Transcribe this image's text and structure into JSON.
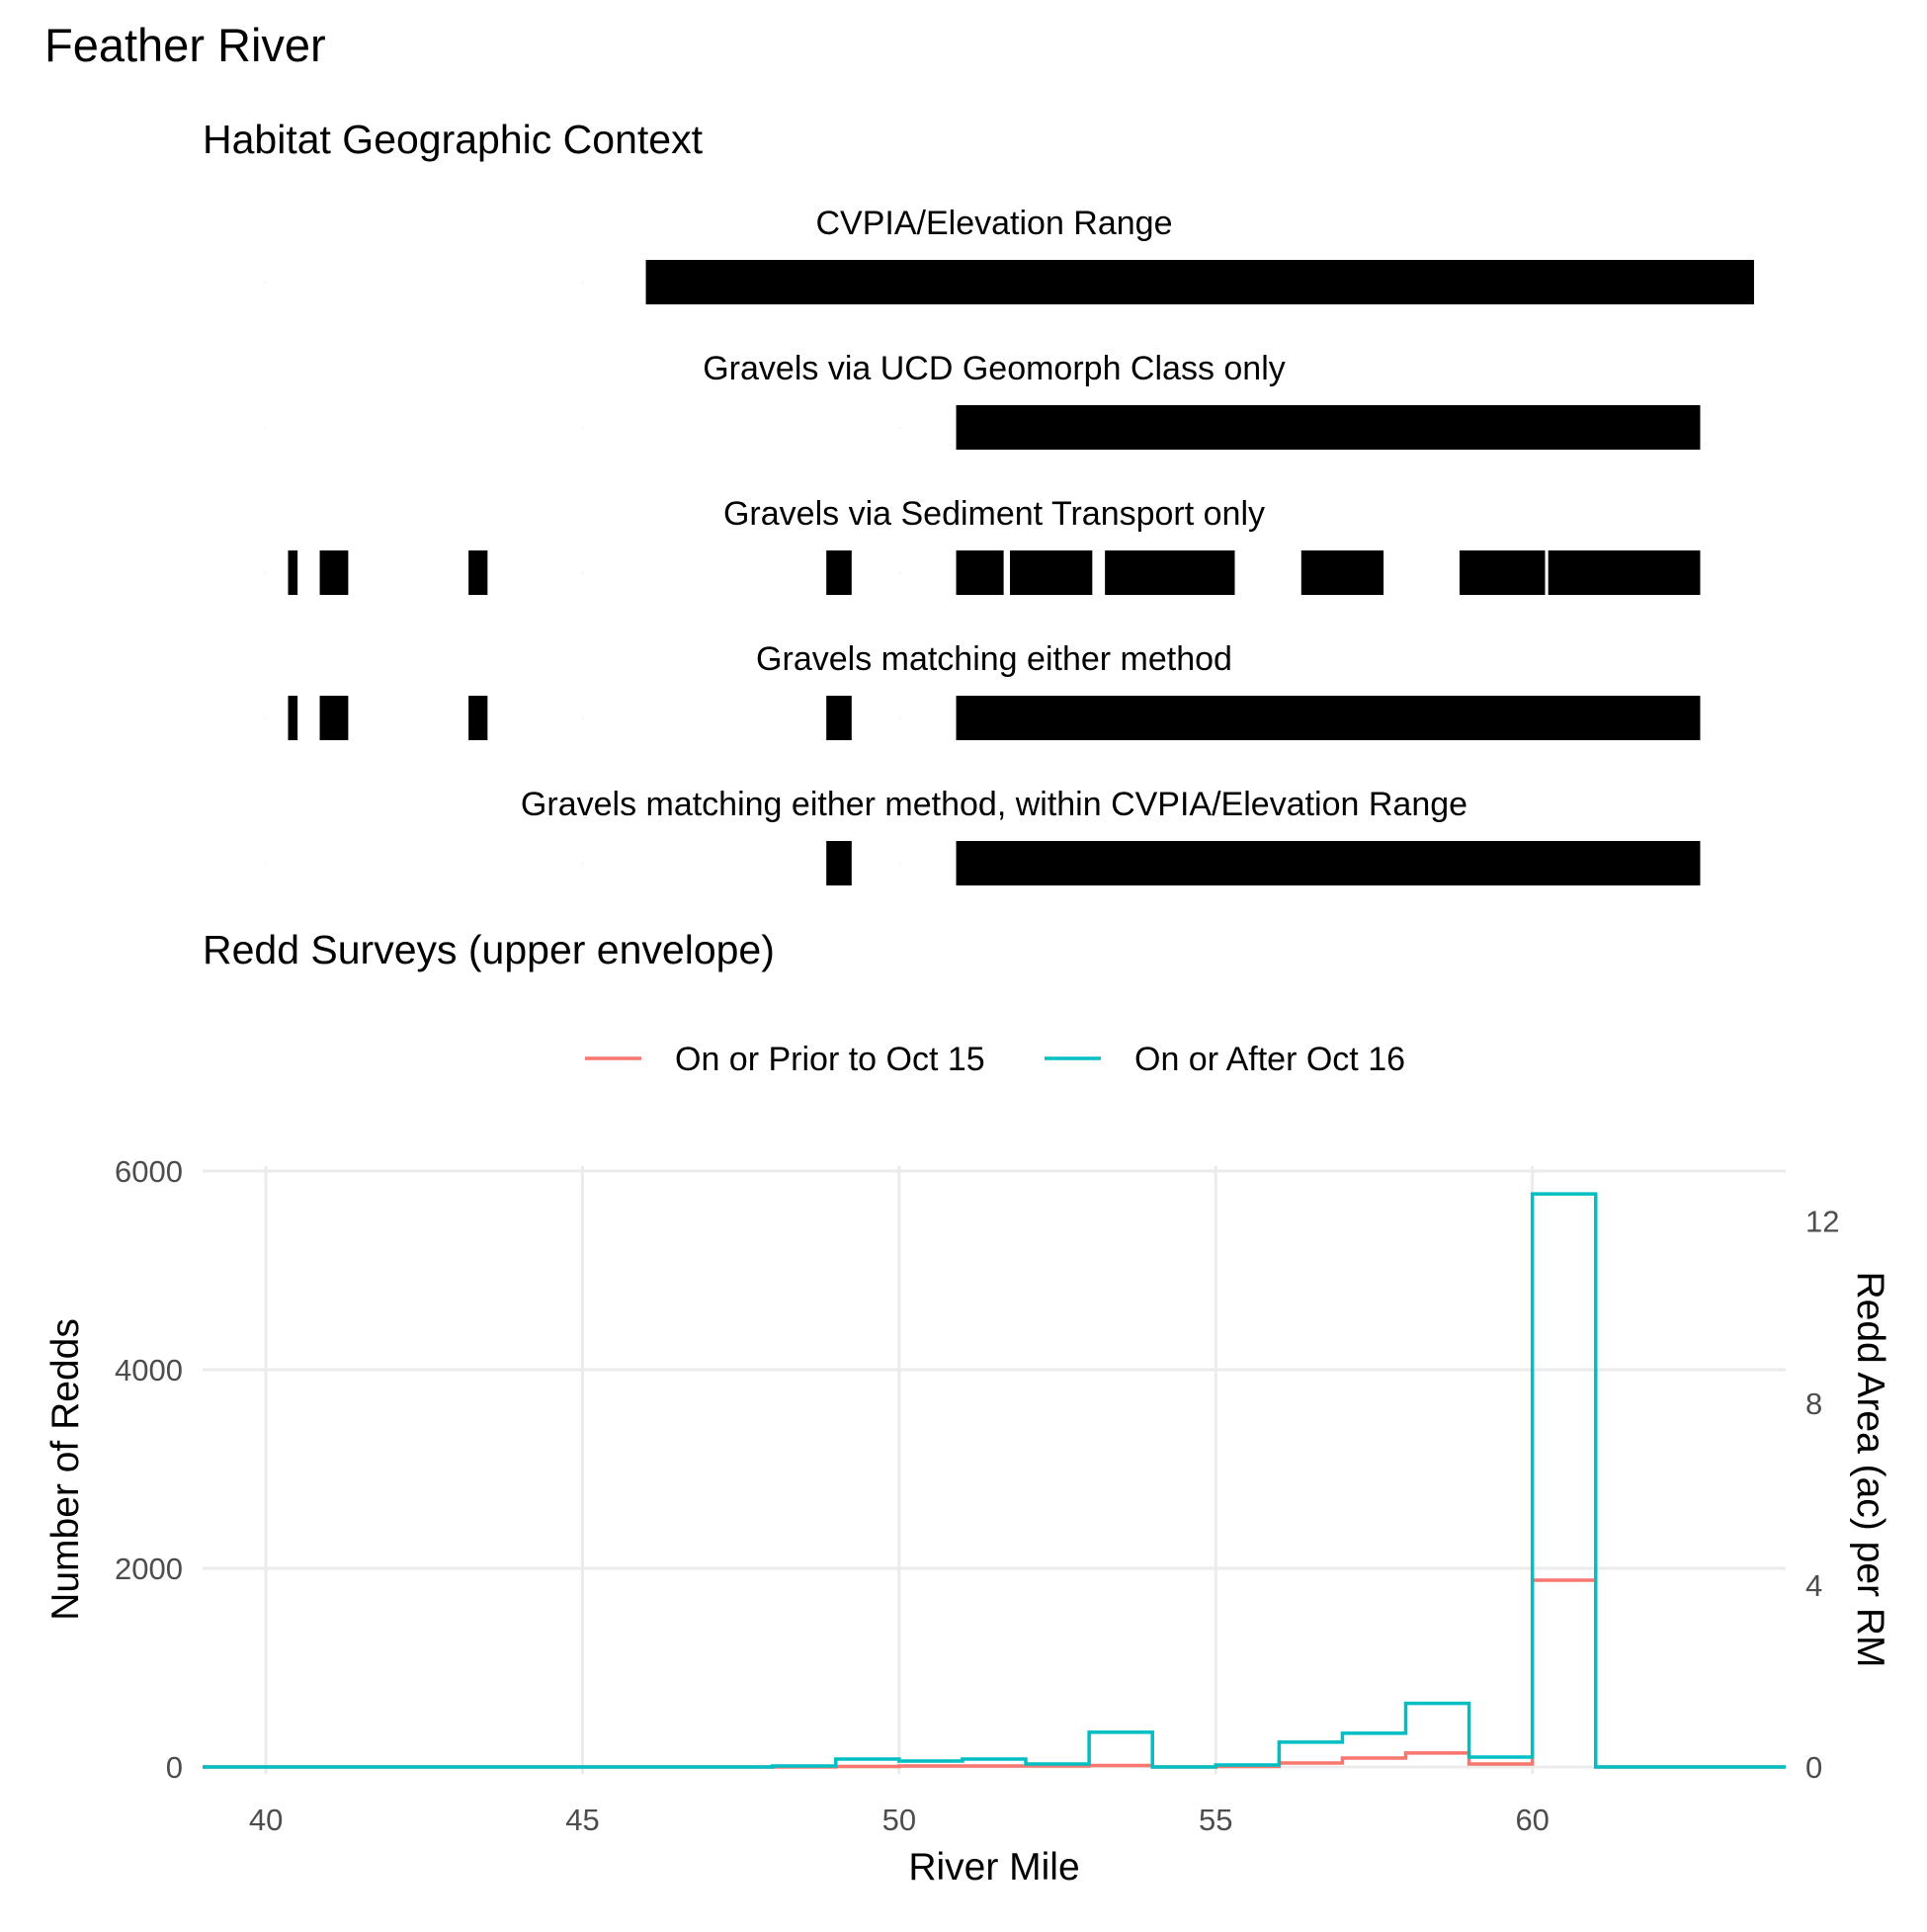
{
  "figure": {
    "title": "Feather River"
  },
  "chart_data": [
    {
      "type": "bar",
      "title": "Habitat Geographic Context",
      "x_range": [
        39,
        64
      ],
      "rows": [
        {
          "label": "CVPIA/Elevation Range",
          "segments": [
            [
              46.0,
              63.5
            ]
          ]
        },
        {
          "label": "Gravels via UCD Geomorph Class only",
          "segments": [
            [
              50.9,
              62.65
            ]
          ]
        },
        {
          "label": "Gravels via Sediment Transport only",
          "segments": [
            [
              40.35,
              40.5
            ],
            [
              40.85,
              41.3
            ],
            [
              43.2,
              43.5
            ],
            [
              48.85,
              49.25
            ],
            [
              50.9,
              51.65
            ],
            [
              51.75,
              53.05
            ],
            [
              53.25,
              55.3
            ],
            [
              56.35,
              57.65
            ],
            [
              58.85,
              60.2
            ],
            [
              60.25,
              62.65
            ]
          ]
        },
        {
          "label": "Gravels matching either method",
          "segments": [
            [
              40.35,
              40.5
            ],
            [
              40.85,
              41.3
            ],
            [
              43.2,
              43.5
            ],
            [
              48.85,
              49.25
            ],
            [
              50.9,
              62.65
            ]
          ]
        },
        {
          "label": "Gravels matching either method, within CVPIA/Elevation Range",
          "segments": [
            [
              48.85,
              49.25
            ],
            [
              50.9,
              62.65
            ]
          ]
        }
      ]
    },
    {
      "type": "line",
      "title": "Redd Surveys (upper envelope)",
      "xlabel": "River Mile",
      "ylabel": "Number of Redds",
      "y2label": "Redd Area (ac) per RM",
      "xlim": [
        39,
        64
      ],
      "ylim": [
        0,
        6000
      ],
      "y2lim": [
        0,
        13.1
      ],
      "x_ticks": [
        40,
        45,
        50,
        55,
        60
      ],
      "y_ticks": [
        0,
        2000,
        4000,
        6000
      ],
      "y2_ticks": [
        0,
        4,
        8,
        12
      ],
      "grid": true,
      "legend_position": "top",
      "step": "post",
      "x": [
        39,
        40,
        41,
        42,
        43,
        44,
        45,
        46,
        47,
        48,
        49,
        50,
        51,
        52,
        53,
        54,
        55,
        56,
        57,
        58,
        59,
        60,
        61,
        62,
        63,
        64
      ],
      "series": [
        {
          "name": "On or Prior to Oct 15",
          "color": "#F8766D",
          "values": [
            0,
            0,
            0,
            0,
            0,
            0,
            0,
            0,
            0,
            0,
            5,
            10,
            10,
            10,
            15,
            0,
            5,
            40,
            90,
            140,
            30,
            1880,
            0,
            0,
            0,
            0
          ]
        },
        {
          "name": "On or After Oct 16",
          "color": "#00BFC4",
          "values": [
            0,
            0,
            0,
            0,
            0,
            0,
            0,
            0,
            0,
            10,
            80,
            60,
            80,
            30,
            350,
            0,
            20,
            250,
            340,
            640,
            100,
            5770,
            0,
            0,
            0,
            0
          ]
        }
      ]
    }
  ]
}
